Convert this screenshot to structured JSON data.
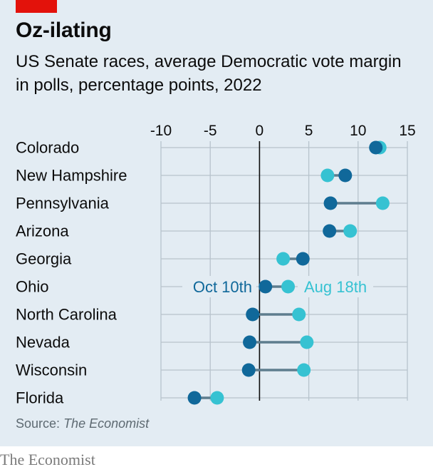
{
  "header": {
    "title": "Oz-ilating",
    "subtitle": "US Senate races, average Democratic vote margin in polls, percentage points, 2022"
  },
  "source": {
    "label": "Source:",
    "name": "The Economist"
  },
  "footer": {
    "brand": "The Economist"
  },
  "colors": {
    "panel_background": "#e3ecf3",
    "brand_red": "#e3120b",
    "oct_series": "#10689a",
    "aug_series": "#36c2d2",
    "connector": "#5e7d8e",
    "grid": "#b7c3cc",
    "zero_line": "#0c0c0c"
  },
  "chart_data": {
    "type": "dumbbell",
    "x_ticks": [
      -10,
      -5,
      0,
      5,
      10,
      15
    ],
    "xlim": [
      -10,
      15
    ],
    "grid": true,
    "categories": [
      "Colorado",
      "New Hampshire",
      "Pennsylvania",
      "Arizona",
      "Georgia",
      "Ohio",
      "North Carolina",
      "Nevada",
      "Wisconsin",
      "Florida"
    ],
    "series": [
      {
        "name": "Oct 10th",
        "values": [
          11.8,
          8.7,
          7.2,
          7.1,
          4.4,
          0.6,
          -0.7,
          -1.0,
          -1.1,
          -6.6
        ]
      },
      {
        "name": "Aug 18th",
        "values": [
          12.2,
          6.9,
          12.5,
          9.2,
          2.4,
          2.9,
          4.0,
          4.8,
          4.5,
          -4.3
        ]
      }
    ]
  }
}
